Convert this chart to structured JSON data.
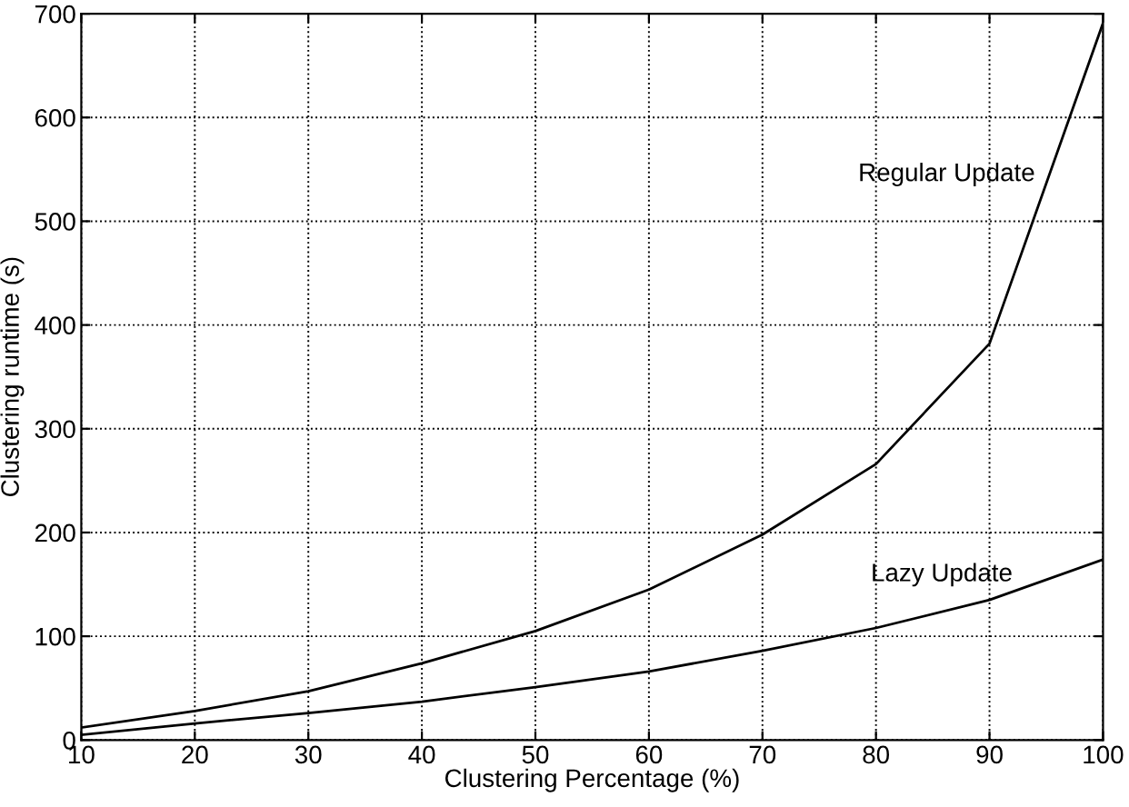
{
  "chart_data": {
    "type": "line",
    "xlabel": "Clustering Percentage (%)",
    "ylabel": "Clustering runtime (s)",
    "x": [
      10,
      20,
      30,
      40,
      50,
      60,
      70,
      80,
      90,
      100
    ],
    "series": [
      {
        "name": "Regular Update",
        "color": "#000000",
        "values": [
          12,
          28,
          47,
          74,
          105,
          145,
          198,
          266,
          382,
          691
        ]
      },
      {
        "name": "Lazy Update",
        "color": "#000000",
        "values": [
          5,
          16,
          26,
          37,
          51,
          66,
          86,
          108,
          135,
          174
        ]
      }
    ],
    "xlim": [
      10,
      100
    ],
    "ylim": [
      0,
      700
    ],
    "xticks": [
      10,
      20,
      30,
      40,
      50,
      60,
      70,
      80,
      90,
      100
    ],
    "yticks": [
      0,
      100,
      200,
      300,
      400,
      500,
      600,
      700
    ],
    "grid": true,
    "marker": "none",
    "line_style": "solid"
  }
}
